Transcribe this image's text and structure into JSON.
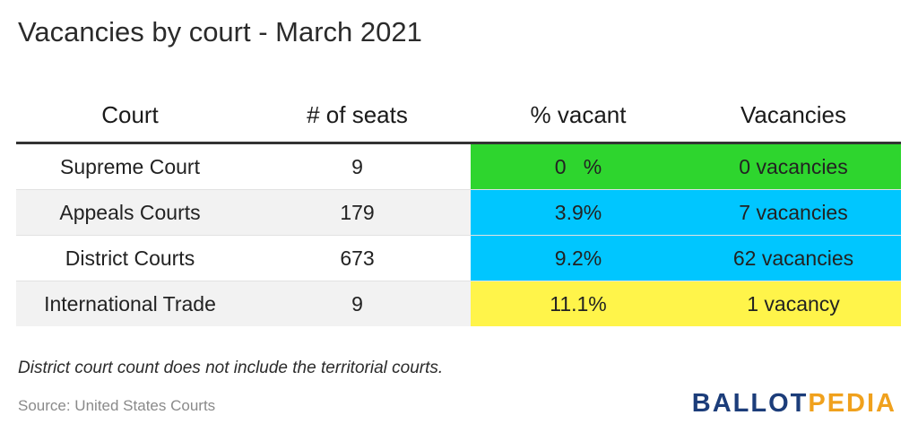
{
  "title": "Vacancies by court - March 2021",
  "chart_data": {
    "type": "table",
    "title": "Vacancies by court - March 2021",
    "columns": [
      "Court",
      "# of seats",
      "% vacant",
      "Vacancies"
    ],
    "rows": [
      {
        "court": "Supreme Court",
        "seats": "9",
        "pct_vacant": "0   %",
        "vacancies": "0 vacancies",
        "pct_color": "#2ed52e",
        "vac_color": "#2ed52e"
      },
      {
        "court": "Appeals Courts",
        "seats": "179",
        "pct_vacant": "3.9%",
        "vacancies": "7 vacancies",
        "pct_color": "#00c6ff",
        "vac_color": "#00c6ff"
      },
      {
        "court": "District Courts",
        "seats": "673",
        "pct_vacant": "9.2%",
        "vacancies": "62 vacancies",
        "pct_color": "#00c6ff",
        "vac_color": "#00c6ff"
      },
      {
        "court": "International Trade",
        "seats": "9",
        "pct_vacant": "11.1%",
        "vacancies": "1 vacancy",
        "pct_color": "#fff44a",
        "vac_color": "#fff44a"
      }
    ]
  },
  "note": "District court count does not include the territorial courts.",
  "source": "Source: United States Courts",
  "logo": {
    "part1": "BALLOT",
    "part2": "PEDIA",
    "color1": "#1c3d7a",
    "color2": "#f0a11d"
  }
}
